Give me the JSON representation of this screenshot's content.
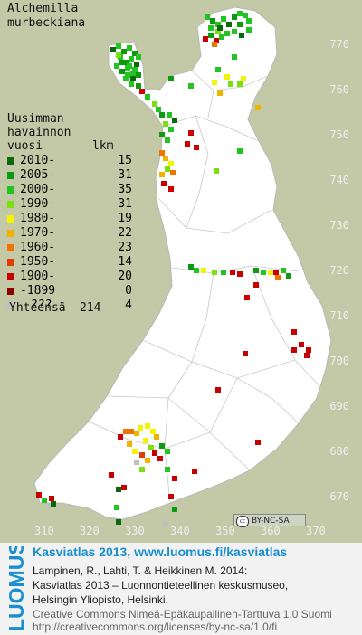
{
  "species": {
    "line1": "Alchemilla",
    "line2": "murbeckiana"
  },
  "legend": {
    "title_line1": "Uusimman",
    "title_line2": "havainnon",
    "title_line3": "vuosi",
    "count_header": "lkm",
    "items": [
      {
        "label": "2010-",
        "count": "15",
        "color": "#0a6a0a"
      },
      {
        "label": "2005-",
        "count": "31",
        "color": "#0e9a0e"
      },
      {
        "label": "2000-",
        "count": "35",
        "color": "#22c422"
      },
      {
        "label": "1990-",
        "count": "31",
        "color": "#7ce010"
      },
      {
        "label": "1980-",
        "count": "19",
        "color": "#f4f400"
      },
      {
        "label": "1970-",
        "count": "22",
        "color": "#f0b400"
      },
      {
        "label": "1960-",
        "count": "23",
        "color": "#f07400"
      },
      {
        "label": "1950-",
        "count": "14",
        "color": "#e03c00"
      },
      {
        "label": "1900-",
        "count": "20",
        "color": "#c80000"
      },
      {
        "label": "-1899",
        "count": "0",
        "color": "#8c0000"
      },
      {
        "label": "???",
        "count": "4",
        "color": "#c0c0c0"
      }
    ],
    "total_label": "Yhteensä",
    "total_value": "214"
  },
  "axes": {
    "lat_labels": [
      "770",
      "760",
      "750",
      "740",
      "730",
      "720",
      "710",
      "700",
      "690",
      "680",
      "670"
    ],
    "lon_labels": [
      "310",
      "320",
      "330",
      "340",
      "350",
      "360",
      "370"
    ]
  },
  "license_badge": {
    "cc": "cc",
    "text": "BY-NC-SA"
  },
  "footer": {
    "brand": "LUOMUS",
    "atlas_link": "Kasviatlas 2013, www.luomus.fi/kasviatlas",
    "cite1": "Lampinen, R., Lahti, T. & Heikkinen M. 2014:",
    "cite2": "Kasviatlas 2013 – Luonnontieteellinen keskusmuseo,",
    "cite3": "Helsingin Yliopisto, Helsinki.",
    "lic1": "Creative Commons Nimeä-Epäkaupallinen-Tarttuva 1.0 Suomi",
    "lic2": "http://creativecommons.org/licenses/by-nc-sa/1.0/fi"
  },
  "colors": {
    "map_bg": "#c3c9a6",
    "land": "#ffffff",
    "brand_blue": "#1a8fd0"
  }
}
